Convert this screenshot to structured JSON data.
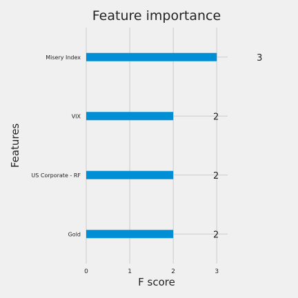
{
  "chart_data": {
    "type": "bar",
    "orientation": "horizontal",
    "title": "Feature importance",
    "xlabel": "F score",
    "ylabel": "Features",
    "categories": [
      "Misery Index",
      "VIX",
      "US Corporate - RF",
      "Gold"
    ],
    "values": [
      3,
      2,
      2,
      2
    ],
    "data_labels": [
      "3",
      "2",
      "2",
      "2"
    ],
    "xticks": [
      "0",
      "1",
      "2",
      "3"
    ],
    "xlim": [
      0,
      3.25
    ],
    "grid": true,
    "bar_color": "#008fd5",
    "background_color": "#f0f0f0",
    "grid_color": "#cbcbcb",
    "text_color": "#222222"
  }
}
